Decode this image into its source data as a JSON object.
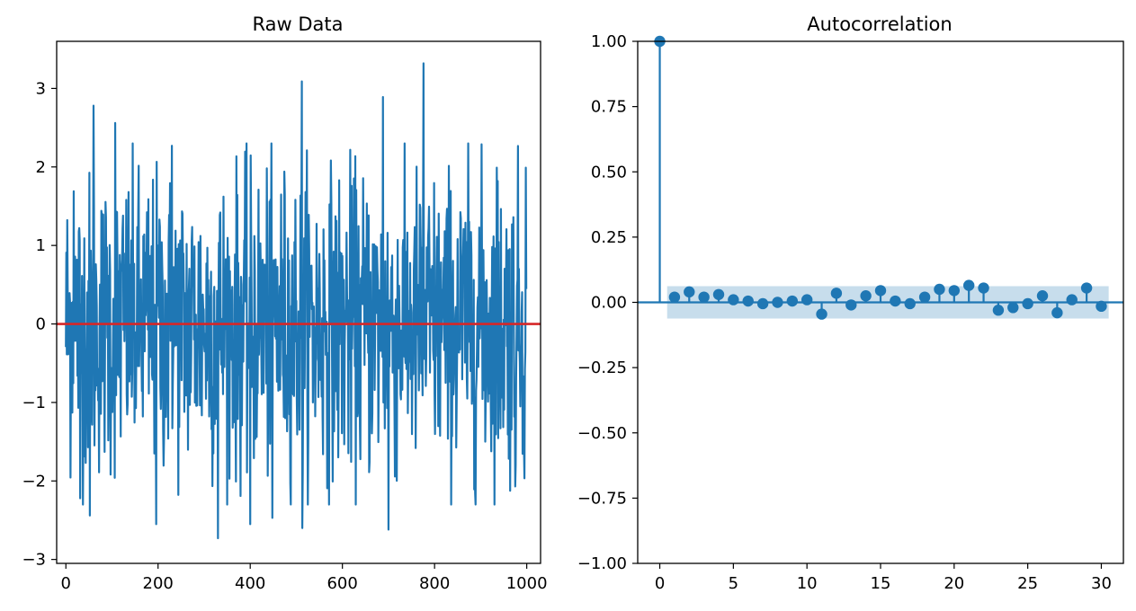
{
  "chart_data": [
    {
      "type": "line",
      "title": "Raw Data",
      "xlabel": "",
      "ylabel": "",
      "xlim": [
        -20,
        1030
      ],
      "ylim": [
        -3.05,
        3.6
      ],
      "xticks": [
        0,
        200,
        400,
        600,
        800,
        1000
      ],
      "yticks": [
        -3,
        -2,
        -1,
        0,
        1,
        2,
        3
      ],
      "grid": false,
      "n_points": 1000,
      "series_color": "#1f77b4",
      "summary": {
        "min": -2.73,
        "max": 3.32,
        "notable_points": [
          {
            "x": 17,
            "y": 1.69
          },
          {
            "x": 31,
            "y": -2.22
          },
          {
            "x": 52,
            "y": -2.44
          },
          {
            "x": 60,
            "y": 2.78
          },
          {
            "x": 107,
            "y": 2.56
          },
          {
            "x": 196,
            "y": -2.55
          },
          {
            "x": 230,
            "y": 2.27
          },
          {
            "x": 330,
            "y": -2.73
          },
          {
            "x": 400,
            "y": -2.55
          },
          {
            "x": 448,
            "y": -2.47
          },
          {
            "x": 512,
            "y": 3.09
          },
          {
            "x": 513,
            "y": -2.6
          },
          {
            "x": 688,
            "y": 2.89
          },
          {
            "x": 700,
            "y": -2.62
          },
          {
            "x": 776,
            "y": 3.32
          },
          {
            "x": 935,
            "y": 1.99
          },
          {
            "x": 975,
            "y": -2.07
          },
          {
            "x": 998,
            "y": 1.99
          }
        ]
      },
      "reference_line": {
        "y": 0,
        "color": "#d62728"
      }
    },
    {
      "type": "scatter",
      "subtype": "stem",
      "title": "Autocorrelation",
      "xlabel": "",
      "ylabel": "",
      "xlim": [
        -1.5,
        31.5
      ],
      "ylim": [
        -1.0,
        1.0
      ],
      "xticks": [
        0,
        5,
        10,
        15,
        20,
        25,
        30
      ],
      "yticks": [
        "−1.00",
        "−0.75",
        "−0.50",
        "−0.25",
        "0.00",
        "0.25",
        "0.50",
        "0.75",
        "1.00"
      ],
      "ytick_values": [
        -1.0,
        -0.75,
        -0.5,
        -0.25,
        0.0,
        0.25,
        0.5,
        0.75,
        1.0
      ],
      "grid": false,
      "color": "#1f77b4",
      "confidence_band": 0.062,
      "lags": [
        0,
        1,
        2,
        3,
        4,
        5,
        6,
        7,
        8,
        9,
        10,
        11,
        12,
        13,
        14,
        15,
        16,
        17,
        18,
        19,
        20,
        21,
        22,
        23,
        24,
        25,
        26,
        27,
        28,
        29,
        30
      ],
      "values": [
        1.0,
        0.02,
        0.04,
        0.02,
        0.03,
        0.01,
        0.005,
        -0.005,
        0.0,
        0.005,
        0.01,
        -0.045,
        0.035,
        -0.01,
        0.025,
        0.045,
        0.005,
        -0.005,
        0.02,
        0.05,
        0.045,
        0.065,
        0.055,
        -0.03,
        -0.02,
        -0.005,
        0.025,
        -0.04,
        0.01,
        0.055,
        -0.015
      ]
    }
  ]
}
